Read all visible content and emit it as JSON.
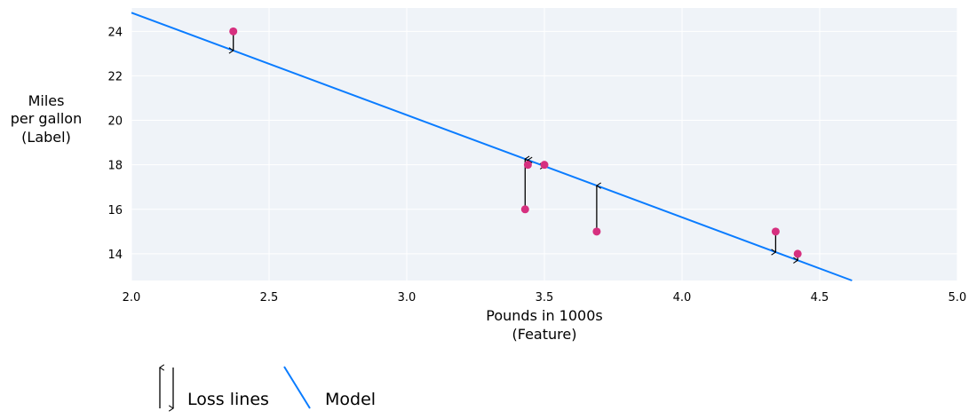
{
  "chart_data": {
    "type": "scatter",
    "xlabel": [
      "Pounds in 1000s",
      "(Feature)"
    ],
    "ylabel": [
      "Miles",
      "per gallon",
      "(Label)"
    ],
    "xlim": [
      2.0,
      5.0
    ],
    "ylim": [
      12.8,
      25.05
    ],
    "xticks": [
      "2.0",
      "2.5",
      "3.0",
      "3.5",
      "4.0",
      "4.5",
      "5.0"
    ],
    "yticks": [
      "14",
      "16",
      "18",
      "20",
      "22",
      "24"
    ],
    "grid": true,
    "points": [
      {
        "x": 2.37,
        "y": 24
      },
      {
        "x": 3.43,
        "y": 16
      },
      {
        "x": 3.44,
        "y": 18
      },
      {
        "x": 3.5,
        "y": 18
      },
      {
        "x": 3.69,
        "y": 15
      },
      {
        "x": 4.34,
        "y": 15
      },
      {
        "x": 4.42,
        "y": 14
      }
    ],
    "model": {
      "slope": -4.6,
      "intercept": 34.04
    },
    "legend": {
      "placement": "bottom-left",
      "entries": [
        "Loss lines",
        "Model"
      ]
    },
    "colors": {
      "background": "#eff3f8",
      "points": "#d6307f",
      "model": "#0a7cff",
      "loss": "#000000"
    }
  }
}
